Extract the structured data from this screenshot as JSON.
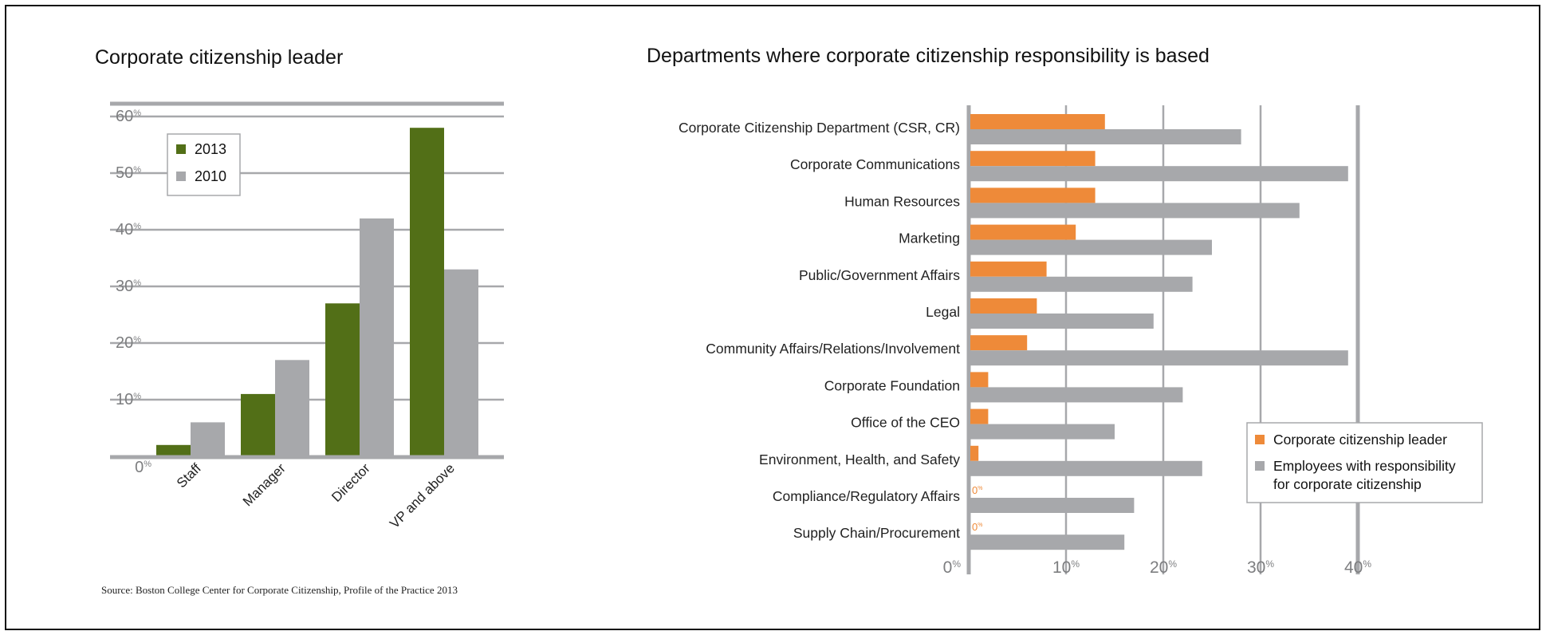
{
  "source": "Source: Boston College Center for Corporate Citizenship, Profile of the Practice 2013",
  "colors": {
    "series_2013": "#526f17",
    "series_2010": "#a7a8ab",
    "leader": "#ee8a39",
    "employees": "#a7a8ab",
    "axis": "#a7a8ab",
    "tick_text": "#7d7e80"
  },
  "chart_data": [
    {
      "type": "bar",
      "title": "Corporate citizenship leader",
      "categories": [
        "Staff",
        "Manager",
        "Director",
        "VP and above"
      ],
      "series": [
        {
          "name": "2013",
          "values": [
            2,
            11,
            27,
            58
          ]
        },
        {
          "name": "2010",
          "values": [
            6,
            17,
            42,
            33
          ]
        }
      ],
      "ylim": [
        0,
        60
      ],
      "yticks": [
        0,
        10,
        20,
        30,
        40,
        50,
        60
      ],
      "tick_unit": "%",
      "legend_position": "top-left",
      "grid": true
    },
    {
      "type": "bar",
      "orientation": "horizontal",
      "title": "Departments where corporate citizenship responsibility is based",
      "categories": [
        "Corporate Citizenship Department (CSR, CR)",
        "Corporate Communications",
        "Human Resources",
        "Marketing",
        "Public/Government Affairs",
        "Legal",
        "Community Affairs/Relations/Involvement",
        "Corporate Foundation",
        "Office of the CEO",
        "Environment, Health, and Safety",
        "Compliance/Regulatory Affairs",
        "Supply Chain/Procurement"
      ],
      "series": [
        {
          "name": "Corporate citizenship leader",
          "values": [
            14,
            13,
            13,
            11,
            8,
            7,
            6,
            2,
            2,
            1,
            0,
            0
          ]
        },
        {
          "name": "Employees with responsibility for corporate citizenship",
          "values": [
            28,
            39,
            34,
            25,
            23,
            19,
            39,
            22,
            15,
            24,
            17,
            16
          ]
        }
      ],
      "zero_labels": [
        "0",
        "%"
      ],
      "xlim": [
        0,
        40
      ],
      "xticks": [
        0,
        10,
        20,
        30,
        40
      ],
      "tick_unit": "%",
      "legend_position": "bottom-right",
      "grid": true
    }
  ]
}
